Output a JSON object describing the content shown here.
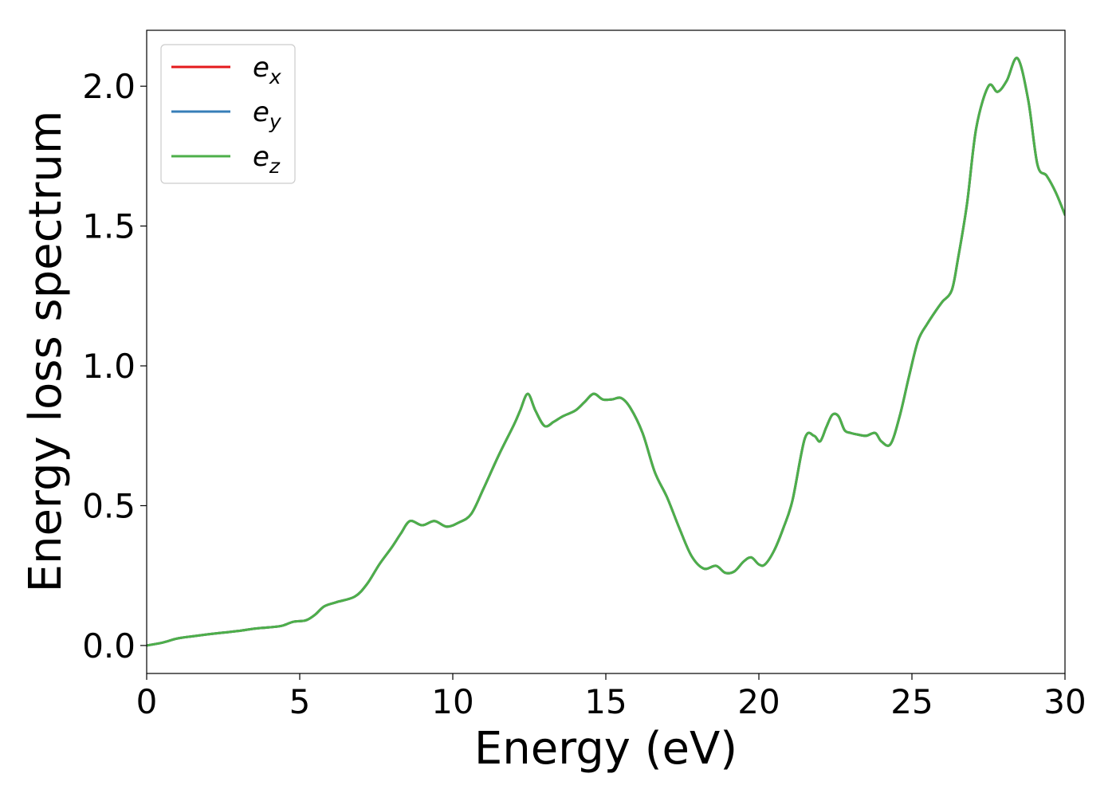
{
  "chart_data": {
    "type": "line",
    "xlabel": "Energy (eV)",
    "ylabel": "Energy loss spectrum",
    "xlim": [
      0,
      30
    ],
    "ylim": [
      -0.1,
      2.2
    ],
    "x_ticks": [
      0,
      5,
      10,
      15,
      20,
      25,
      30
    ],
    "x_tick_labels": [
      "0",
      "5",
      "10",
      "15",
      "20",
      "25",
      "30"
    ],
    "y_ticks": [
      0.0,
      0.5,
      1.0,
      1.5,
      2.0
    ],
    "y_tick_labels": [
      "0.0",
      "0.5",
      "1.0",
      "1.5",
      "2.0"
    ],
    "grid": false,
    "legend_position": "top-left",
    "x": [
      0,
      0.5,
      1.0,
      1.5,
      2.0,
      2.5,
      3.0,
      3.5,
      4.0,
      4.4,
      4.8,
      5.2,
      5.5,
      5.8,
      6.2,
      6.8,
      7.2,
      7.6,
      8.0,
      8.3,
      8.6,
      9.0,
      9.4,
      9.8,
      10.2,
      10.6,
      11.0,
      11.5,
      12.0,
      12.2,
      12.45,
      12.7,
      13.0,
      13.3,
      13.6,
      14.0,
      14.3,
      14.6,
      14.9,
      15.2,
      15.5,
      15.8,
      16.2,
      16.6,
      17.0,
      17.4,
      17.8,
      18.2,
      18.6,
      18.9,
      19.2,
      19.5,
      19.75,
      20.0,
      20.2,
      20.5,
      20.8,
      21.1,
      21.5,
      21.8,
      22.0,
      22.2,
      22.4,
      22.6,
      22.8,
      23.0,
      23.2,
      23.5,
      23.8,
      24.0,
      24.3,
      24.6,
      24.9,
      25.2,
      25.5,
      25.8,
      26.0,
      26.3,
      26.5,
      26.8,
      27.1,
      27.5,
      27.8,
      28.1,
      28.45,
      28.8,
      29.1,
      29.4,
      29.7,
      30.0
    ],
    "series": [
      {
        "name": "e_x",
        "color": "#e41a1c",
        "values": [
          0.0,
          0.01,
          0.025,
          0.033,
          0.04,
          0.046,
          0.052,
          0.06,
          0.065,
          0.07,
          0.085,
          0.09,
          0.11,
          0.14,
          0.155,
          0.175,
          0.22,
          0.29,
          0.35,
          0.4,
          0.445,
          0.43,
          0.445,
          0.425,
          0.44,
          0.47,
          0.56,
          0.68,
          0.79,
          0.84,
          0.9,
          0.84,
          0.785,
          0.8,
          0.82,
          0.84,
          0.87,
          0.9,
          0.88,
          0.88,
          0.885,
          0.85,
          0.76,
          0.62,
          0.53,
          0.42,
          0.32,
          0.275,
          0.285,
          0.26,
          0.265,
          0.3,
          0.315,
          0.29,
          0.29,
          0.34,
          0.42,
          0.52,
          0.74,
          0.75,
          0.73,
          0.78,
          0.825,
          0.82,
          0.77,
          0.76,
          0.755,
          0.75,
          0.76,
          0.73,
          0.72,
          0.82,
          0.96,
          1.09,
          1.15,
          1.2,
          1.23,
          1.27,
          1.38,
          1.58,
          1.85,
          2.0,
          1.98,
          2.02,
          2.1,
          1.95,
          1.72,
          1.68,
          1.62,
          1.54
        ]
      },
      {
        "name": "e_y",
        "color": "#377eb8",
        "values": [
          0.0,
          0.01,
          0.025,
          0.033,
          0.04,
          0.046,
          0.052,
          0.06,
          0.065,
          0.07,
          0.085,
          0.09,
          0.11,
          0.14,
          0.155,
          0.175,
          0.22,
          0.29,
          0.35,
          0.4,
          0.445,
          0.43,
          0.445,
          0.425,
          0.44,
          0.47,
          0.56,
          0.68,
          0.79,
          0.84,
          0.9,
          0.84,
          0.785,
          0.8,
          0.82,
          0.84,
          0.87,
          0.9,
          0.88,
          0.88,
          0.885,
          0.85,
          0.76,
          0.62,
          0.53,
          0.42,
          0.32,
          0.275,
          0.285,
          0.26,
          0.265,
          0.3,
          0.315,
          0.29,
          0.29,
          0.34,
          0.42,
          0.52,
          0.74,
          0.75,
          0.73,
          0.78,
          0.825,
          0.82,
          0.77,
          0.76,
          0.755,
          0.75,
          0.76,
          0.73,
          0.72,
          0.82,
          0.96,
          1.09,
          1.15,
          1.2,
          1.23,
          1.27,
          1.38,
          1.58,
          1.85,
          2.0,
          1.98,
          2.02,
          2.1,
          1.95,
          1.72,
          1.68,
          1.62,
          1.54
        ]
      },
      {
        "name": "e_z",
        "color": "#4daf4a",
        "values": [
          0.0,
          0.01,
          0.025,
          0.033,
          0.04,
          0.046,
          0.052,
          0.06,
          0.065,
          0.07,
          0.085,
          0.09,
          0.11,
          0.14,
          0.155,
          0.175,
          0.22,
          0.29,
          0.35,
          0.4,
          0.445,
          0.43,
          0.445,
          0.425,
          0.44,
          0.47,
          0.56,
          0.68,
          0.79,
          0.84,
          0.9,
          0.84,
          0.785,
          0.8,
          0.82,
          0.84,
          0.87,
          0.9,
          0.88,
          0.88,
          0.885,
          0.85,
          0.76,
          0.62,
          0.53,
          0.42,
          0.32,
          0.275,
          0.285,
          0.26,
          0.265,
          0.3,
          0.315,
          0.29,
          0.29,
          0.34,
          0.42,
          0.52,
          0.74,
          0.75,
          0.73,
          0.78,
          0.825,
          0.82,
          0.77,
          0.76,
          0.755,
          0.75,
          0.76,
          0.73,
          0.72,
          0.82,
          0.96,
          1.09,
          1.15,
          1.2,
          1.23,
          1.27,
          1.38,
          1.58,
          1.85,
          2.0,
          1.98,
          2.02,
          2.1,
          1.95,
          1.72,
          1.68,
          1.62,
          1.54
        ]
      }
    ],
    "legend": [
      {
        "base": "e",
        "sub": "x",
        "color": "#e41a1c"
      },
      {
        "base": "e",
        "sub": "y",
        "color": "#377eb8"
      },
      {
        "base": "e",
        "sub": "z",
        "color": "#4daf4a"
      }
    ]
  }
}
